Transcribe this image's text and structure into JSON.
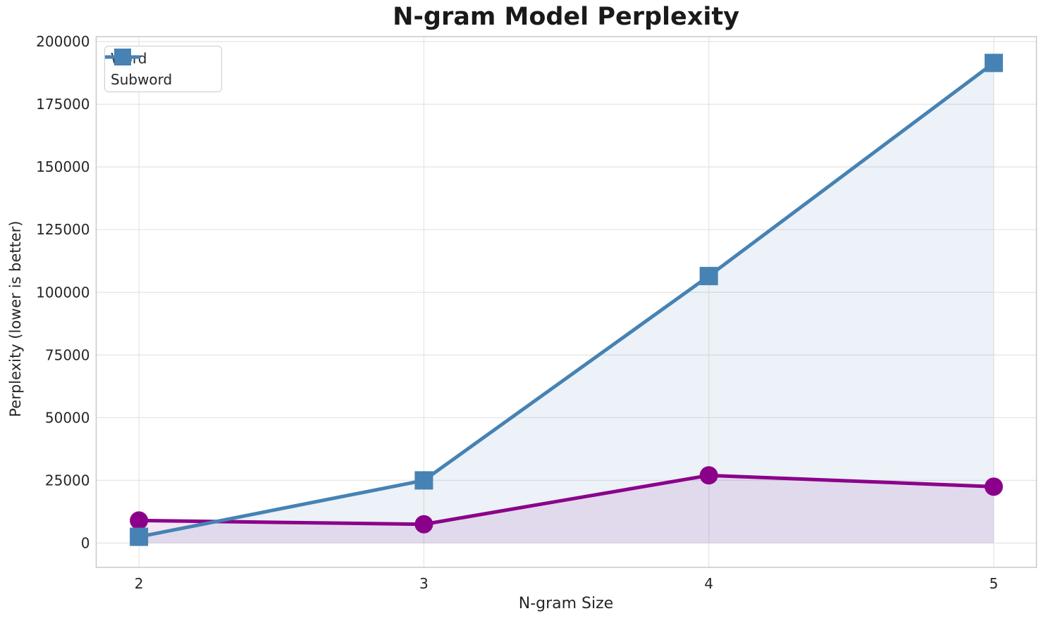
{
  "chart_data": {
    "type": "line",
    "title": "N-gram Model Perplexity",
    "xlabel": "N-gram Size",
    "ylabel": "Perplexity (lower is better)",
    "x": [
      2,
      3,
      4,
      5
    ],
    "series": [
      {
        "name": "Word",
        "marker": "circle",
        "color": "#8B008B",
        "values": [
          9000,
          7500,
          27000,
          22500
        ]
      },
      {
        "name": "Subword",
        "marker": "square",
        "color": "#4682B4",
        "values": [
          2500,
          25000,
          106500,
          191500
        ]
      }
    ],
    "fill_to_zero": true,
    "fill_alpha": 0.1,
    "xlim": [
      1.85,
      5.15
    ],
    "ylim": [
      -9700,
      202000
    ],
    "xticks": [
      2,
      3,
      4,
      5
    ],
    "yticks": [
      0,
      25000,
      50000,
      75000,
      100000,
      125000,
      150000,
      175000,
      200000
    ],
    "grid": true,
    "legend_position": "upper left",
    "colors": {
      "grid": "#e6e6e6",
      "spine": "#cccccc",
      "tick_text": "#262626"
    }
  }
}
